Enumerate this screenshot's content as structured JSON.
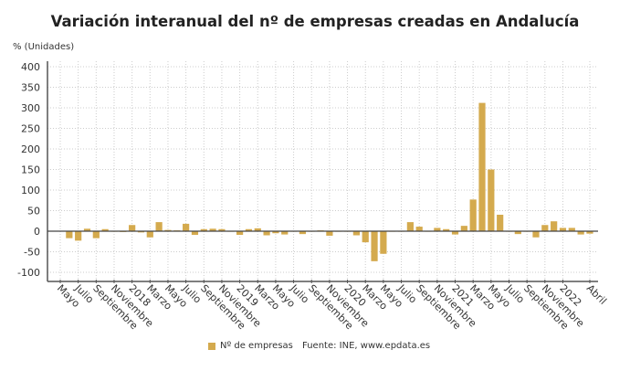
{
  "chart_data": {
    "type": "bar",
    "title": "Variación interanual del nº de empresas creadas en Andalucía",
    "ylabel": "% (Unidades)",
    "xlabel": "",
    "ylim": [
      -100,
      400
    ],
    "yticks": [
      -100,
      -50,
      0,
      50,
      100,
      150,
      200,
      250,
      300,
      350,
      400
    ],
    "grid": true,
    "legend_position": "bottom",
    "x": [
      "May 2017",
      "Jun 2017",
      "Jul 2017",
      "Aug 2017",
      "Sep 2017",
      "Oct 2017",
      "Nov 2017",
      "Dec 2017",
      "Jan 2018",
      "Feb 2018",
      "Mar 2018",
      "Apr 2018",
      "May 2018",
      "Jun 2018",
      "Jul 2018",
      "Aug 2018",
      "Sep 2018",
      "Oct 2018",
      "Nov 2018",
      "Dec 2018",
      "Jan 2019",
      "Feb 2019",
      "Mar 2019",
      "Apr 2019",
      "May 2019",
      "Jun 2019",
      "Jul 2019",
      "Aug 2019",
      "Sep 2019",
      "Oct 2019",
      "Nov 2019",
      "Dec 2019",
      "Jan 2020",
      "Feb 2020",
      "Mar 2020",
      "Apr 2020",
      "May 2020",
      "Jun 2020",
      "Jul 2020",
      "Aug 2020",
      "Sep 2020",
      "Oct 2020",
      "Nov 2020",
      "Dec 2020",
      "Jan 2021",
      "Feb 2021",
      "Mar 2021",
      "Apr 2021",
      "May 2021",
      "Jun 2021",
      "Jul 2021",
      "Aug 2021",
      "Sep 2021",
      "Oct 2021",
      "Nov 2021",
      "Dec 2021",
      "Jan 2022",
      "Feb 2022",
      "Mar 2022",
      "Apr 2022"
    ],
    "series": [
      {
        "name": "Nº de empresas",
        "color": "#D4AA4E",
        "values": [
          1,
          -17,
          -23,
          6,
          -17,
          5,
          -1,
          -2,
          15,
          -3,
          -15,
          22,
          3,
          2,
          18,
          -9,
          5,
          6,
          5,
          0,
          -9,
          5,
          7,
          -10,
          -5,
          -8,
          0,
          -7,
          0,
          2,
          -11,
          0,
          0,
          -10,
          -27,
          -73,
          -55,
          0,
          0,
          22,
          11,
          0,
          8,
          5,
          -8,
          13,
          77,
          312,
          150,
          40,
          0,
          -7,
          0,
          -15,
          15,
          24,
          8,
          8,
          -8,
          -6
        ]
      }
    ],
    "tick_labels": [
      {
        "index": 0,
        "label": "Mayo"
      },
      {
        "index": 2,
        "label": "Julio"
      },
      {
        "index": 4,
        "label": "Septiembre"
      },
      {
        "index": 6,
        "label": "Noviembre"
      },
      {
        "index": 8,
        "label": "2018"
      },
      {
        "index": 10,
        "label": "Marzo"
      },
      {
        "index": 12,
        "label": "Mayo"
      },
      {
        "index": 14,
        "label": "Julio"
      },
      {
        "index": 16,
        "label": "Septiembre"
      },
      {
        "index": 18,
        "label": "Noviembre"
      },
      {
        "index": 20,
        "label": "2019"
      },
      {
        "index": 22,
        "label": "Marzo"
      },
      {
        "index": 24,
        "label": "Mayo"
      },
      {
        "index": 26,
        "label": "Julio"
      },
      {
        "index": 28,
        "label": "Septiembre"
      },
      {
        "index": 30,
        "label": "Noviembre"
      },
      {
        "index": 32,
        "label": "2020"
      },
      {
        "index": 34,
        "label": "Marzo"
      },
      {
        "index": 36,
        "label": "Mayo"
      },
      {
        "index": 38,
        "label": "Julio"
      },
      {
        "index": 40,
        "label": "Septiembre"
      },
      {
        "index": 42,
        "label": "Noviembre"
      },
      {
        "index": 44,
        "label": "2021"
      },
      {
        "index": 46,
        "label": "Marzo"
      },
      {
        "index": 48,
        "label": "Mayo"
      },
      {
        "index": 50,
        "label": "Julio"
      },
      {
        "index": 52,
        "label": "Septiembre"
      },
      {
        "index": 54,
        "label": "Noviembre"
      },
      {
        "index": 56,
        "label": "2022"
      },
      {
        "index": 59,
        "label": "Abril"
      }
    ],
    "legend": [
      "Nº de empresas"
    ],
    "source": "Fuente: INE, www.epdata.es"
  }
}
